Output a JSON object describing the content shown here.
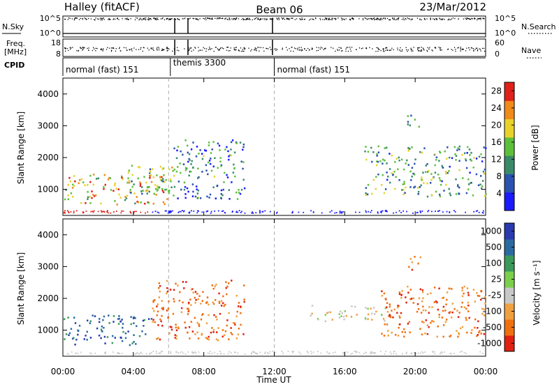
{
  "header": {
    "station": "Halley (fitACF)",
    "beam": "Beam 06",
    "date": "23/Mar/2012"
  },
  "top_panels": {
    "nsky_label": "N.Sky",
    "nsky_ticks": [
      "10^5",
      "10^0"
    ],
    "nsearch_label": "N.Search",
    "nsearch_ticks": [
      "10^5",
      "10^0"
    ],
    "freq_label": "Freq.",
    "freq_unit": "[MHz]",
    "freq_ticks": [
      "18",
      "8"
    ],
    "nave_label": "Nave",
    "nave_ticks": [
      "60",
      "0"
    ],
    "cpid_label": "CPID",
    "cpid_segments": [
      {
        "label": "normal (fast) 151",
        "start": 0,
        "end": 6.1
      },
      {
        "label": "themis 3300",
        "start": 6.1,
        "end": 12.0
      },
      {
        "label": "normal (fast) 151",
        "start": 12.0,
        "end": 24.0
      }
    ],
    "gap_markers_hours": [
      6.35,
      7.1,
      11.9
    ]
  },
  "chart_data": [
    {
      "type": "heatmap",
      "panel": "power",
      "xlabel": "",
      "ylabel": "Slant Range [km]",
      "x_range_hours": [
        0,
        24
      ],
      "ylim": [
        180,
        4500
      ],
      "yticks": [
        "1000",
        "2000",
        "3000",
        "4000"
      ],
      "colorbar_label": "Power [dB]",
      "colorbar_ticks": [
        "4",
        "8",
        "12",
        "16",
        "20",
        "24",
        "28"
      ],
      "colorbar_range": [
        0,
        30
      ],
      "colors": [
        "#1a1aff",
        "#2a52b0",
        "#3a8a6a",
        "#5ec03a",
        "#e8d22a",
        "#f08a1a",
        "#e0201a"
      ],
      "scatter_regions": [
        {
          "t0": 0.0,
          "t1": 6.2,
          "r0": 550,
          "r1": 1500,
          "value": 20
        },
        {
          "t0": 3.5,
          "t1": 6.5,
          "r0": 800,
          "r1": 1800,
          "value": 14
        },
        {
          "t0": 6.2,
          "t1": 10.3,
          "r0": 700,
          "r1": 2600,
          "value": 9
        },
        {
          "t0": 17.0,
          "t1": 24.0,
          "r0": 800,
          "r1": 2400,
          "value": 12
        },
        {
          "t0": 19.5,
          "t1": 20.3,
          "r0": 2900,
          "r1": 3350,
          "value": 10
        }
      ]
    },
    {
      "type": "heatmap",
      "panel": "velocity",
      "xlabel": "Time UT",
      "ylabel": "Slant Range [km]",
      "x_range_hours": [
        0,
        24
      ],
      "xticks": [
        "00:00",
        "04:00",
        "08:00",
        "12:00",
        "16:00",
        "20:00",
        "00:00"
      ],
      "ylim": [
        180,
        4500
      ],
      "yticks": [
        "1000",
        "2000",
        "3000",
        "4000"
      ],
      "colorbar_label": "Velocity [m s⁻¹]",
      "colorbar_ticks": [
        "1000",
        "500",
        "100",
        "25",
        "-25",
        "-100",
        "-500",
        "-1000"
      ],
      "colors": [
        "#2a3ab0",
        "#2a6aa0",
        "#3a9a5a",
        "#7ad04a",
        "#c8c8c8",
        "#f0a040",
        "#f07010",
        "#e02010"
      ],
      "scatter_regions": [
        {
          "t0": 0.0,
          "t1": 5.0,
          "r0": 550,
          "r1": 1500,
          "value": 200
        },
        {
          "t0": 5.0,
          "t1": 10.3,
          "r0": 700,
          "r1": 2600,
          "value": -200
        },
        {
          "t0": 14.0,
          "t1": 19.0,
          "r0": 1300,
          "r1": 1800,
          "value": 0
        },
        {
          "t0": 18.0,
          "t1": 24.0,
          "r0": 800,
          "r1": 2400,
          "value": -300
        },
        {
          "t0": 19.5,
          "t1": 20.3,
          "r0": 2900,
          "r1": 3350,
          "value": -300
        }
      ]
    }
  ]
}
